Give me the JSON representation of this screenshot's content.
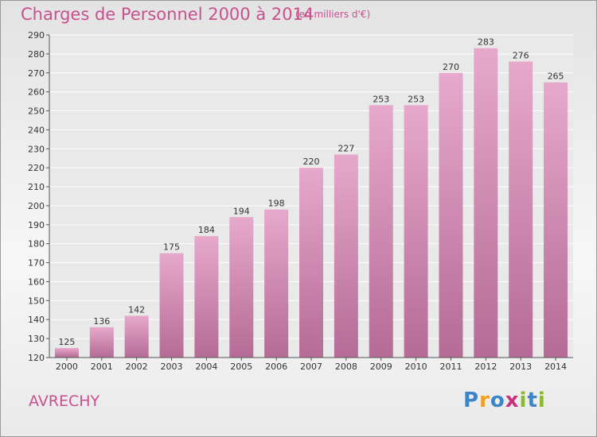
{
  "title": "Charges de Personnel 2000 à 2014",
  "subtitle": "(en milliers d'€)",
  "commune": "AVRECHY",
  "logo": {
    "letters": [
      "P",
      "r",
      "o",
      "x",
      "i",
      "t",
      "i"
    ],
    "colors": [
      "#3a86c8",
      "#f0a020",
      "#3a86c8",
      "#c8307a",
      "#8ab82e",
      "#3a86c8",
      "#8ab82e"
    ]
  },
  "colors": {
    "bar_top": "#e6a9cb",
    "bar_bottom": "#b56b95",
    "text": "#c8508e"
  },
  "chart_data": {
    "type": "bar",
    "categories": [
      "2000",
      "2001",
      "2002",
      "2003",
      "2004",
      "2005",
      "2006",
      "2007",
      "2008",
      "2009",
      "2010",
      "2011",
      "2012",
      "2013",
      "2014"
    ],
    "values": [
      125,
      136,
      142,
      175,
      184,
      194,
      198,
      220,
      227,
      253,
      253,
      270,
      283,
      276,
      265
    ],
    "title": "Charges de Personnel 2000 à 2014",
    "subtitle": "(en milliers d'€)",
    "ylim": [
      120,
      290
    ],
    "yticks": [
      120,
      130,
      140,
      150,
      160,
      170,
      180,
      190,
      200,
      210,
      220,
      230,
      240,
      250,
      260,
      270,
      280,
      290
    ],
    "grid": true,
    "data_labels": true
  }
}
